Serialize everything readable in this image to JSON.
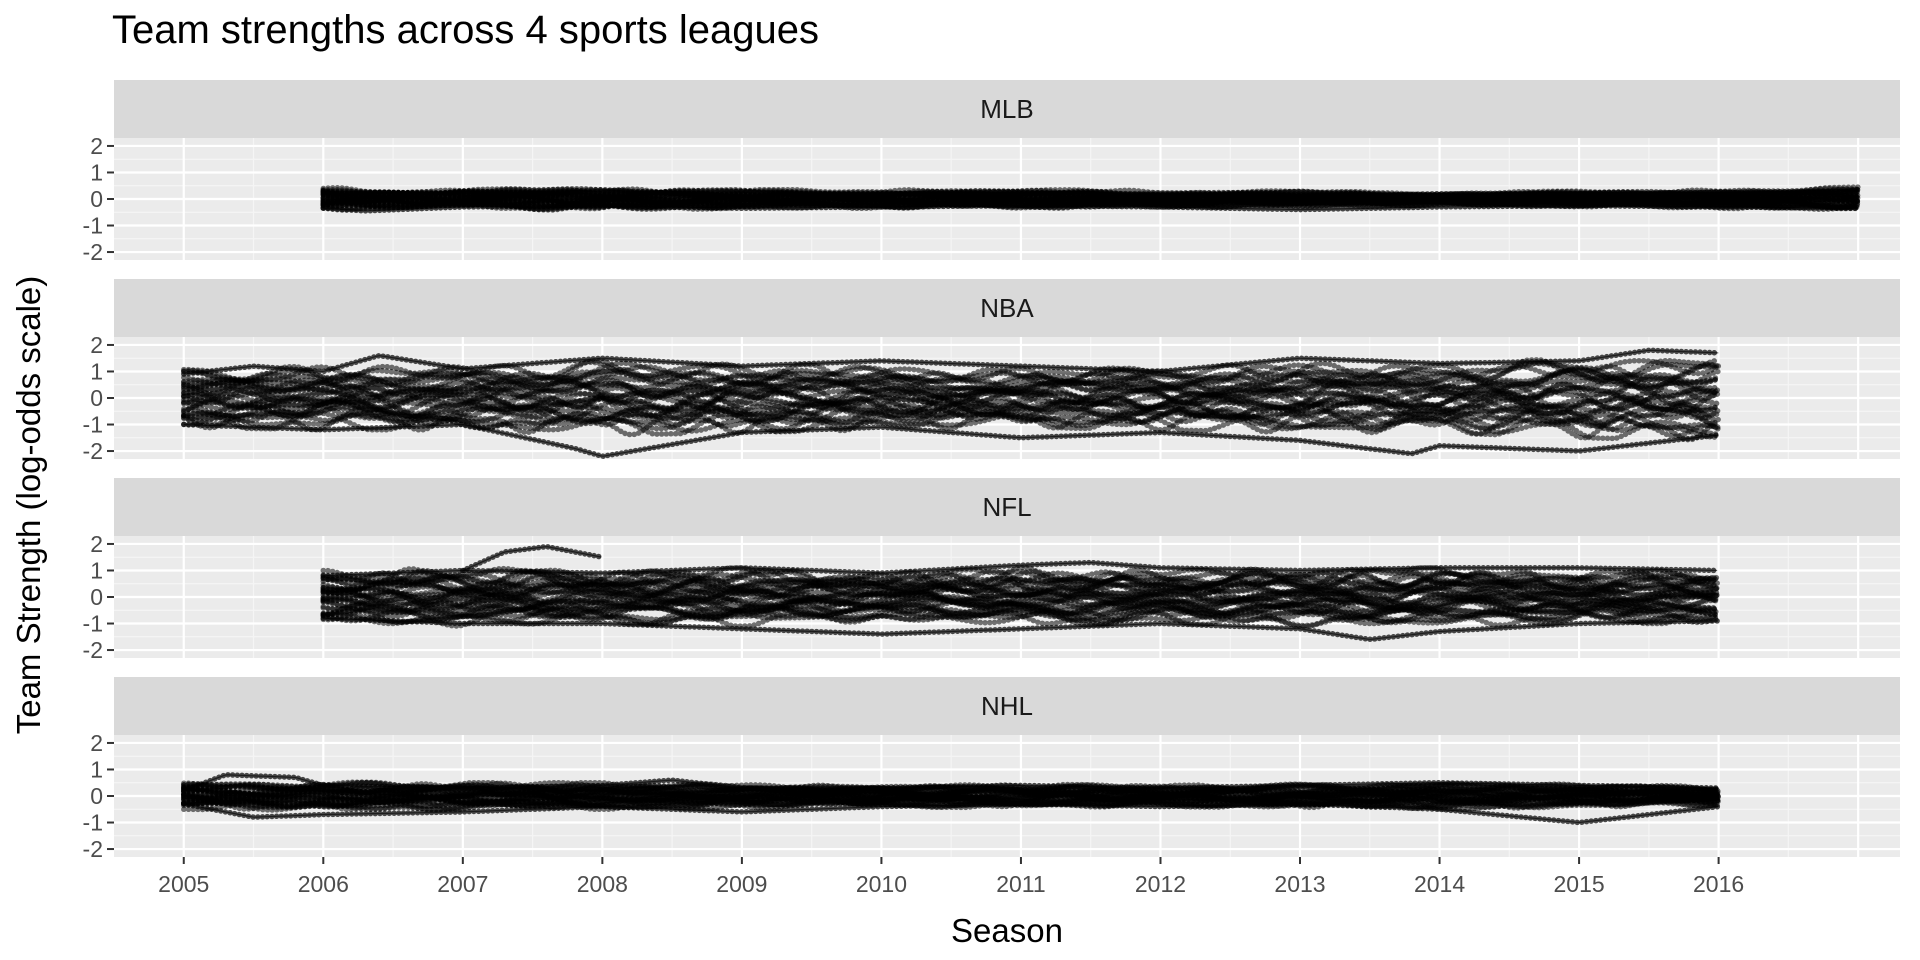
{
  "chart_data": {
    "type": "line",
    "title": "Team strengths across 4 sports leagues",
    "xlabel": "Season",
    "ylabel": "Team Strength (log-odds scale)",
    "xlim": [
      2004.5,
      2017.3
    ],
    "x_ticks": [
      2005,
      2006,
      2007,
      2008,
      2009,
      2010,
      2011,
      2012,
      2013,
      2014,
      2015,
      2016
    ],
    "x_tick_labels": [
      "2005",
      "2006",
      "2007",
      "2008",
      "2009",
      "2010",
      "2011",
      "2012",
      "2013",
      "2014",
      "2015",
      "2016"
    ],
    "ylim": [
      -2.3,
      2.3
    ],
    "y_ticks": [
      -2,
      -1,
      0,
      1,
      2
    ],
    "y_tick_labels": [
      "-2",
      "-1",
      "0",
      "1",
      "2"
    ],
    "grid": true,
    "colors": {
      "panel_bg": "#EBEBEB",
      "strip_bg": "#D9D9D9",
      "grid_major": "#FFFFFF",
      "grid_minor": "#F5F5F5",
      "points": "#000000"
    },
    "facets": [
      {
        "label": "MLB",
        "start": 2006.0,
        "end": 2017.0,
        "n_series": 30,
        "envelope": [
          [
            2006.0,
            0.45
          ],
          [
            2006.5,
            0.35
          ],
          [
            2007.0,
            0.35
          ],
          [
            2008.0,
            0.45
          ],
          [
            2009.0,
            0.35
          ],
          [
            2011.0,
            0.35
          ],
          [
            2013.0,
            0.3
          ],
          [
            2014.0,
            0.25
          ],
          [
            2015.0,
            0.3
          ],
          [
            2016.0,
            0.35
          ],
          [
            2017.0,
            0.45
          ]
        ],
        "series": [
          {
            "values": [
              [
                2006.0,
                0.3
              ],
              [
                2007.0,
                0.2
              ],
              [
                2008.0,
                0.35
              ],
              [
                2009.0,
                0.1
              ],
              [
                2010.0,
                0.2
              ],
              [
                2011.0,
                0.25
              ],
              [
                2012.0,
                0.15
              ],
              [
                2013.0,
                0.1
              ],
              [
                2014.0,
                0.2
              ],
              [
                2015.0,
                0.2
              ],
              [
                2016.0,
                0.25
              ],
              [
                2017.0,
                0.3
              ]
            ]
          },
          {
            "values": [
              [
                2006.0,
                -0.35
              ],
              [
                2006.3,
                -0.45
              ],
              [
                2007.0,
                -0.3
              ],
              [
                2008.0,
                -0.25
              ],
              [
                2009.0,
                -0.35
              ],
              [
                2010.0,
                -0.3
              ],
              [
                2011.0,
                -0.25
              ],
              [
                2012.0,
                -0.3
              ],
              [
                2013.0,
                -0.4
              ],
              [
                2014.0,
                -0.3
              ],
              [
                2015.0,
                -0.25
              ],
              [
                2016.0,
                -0.3
              ],
              [
                2017.0,
                -0.35
              ]
            ]
          }
        ]
      },
      {
        "label": "NBA",
        "start": 2005.0,
        "end": 2016.0,
        "n_series": 30,
        "envelope": [
          [
            2005.0,
            1.1
          ],
          [
            2006.0,
            1.2
          ],
          [
            2007.0,
            1.2
          ],
          [
            2008.0,
            1.4
          ],
          [
            2009.0,
            1.3
          ],
          [
            2010.0,
            1.2
          ],
          [
            2011.0,
            1.1
          ],
          [
            2012.0,
            1.2
          ],
          [
            2013.0,
            1.3
          ],
          [
            2014.0,
            1.3
          ],
          [
            2015.0,
            1.5
          ],
          [
            2016.0,
            1.6
          ]
        ],
        "series": [
          {
            "values": [
              [
                2005.0,
                0.9
              ],
              [
                2005.5,
                1.2
              ],
              [
                2006.0,
                1.0
              ],
              [
                2006.4,
                1.6
              ],
              [
                2007.0,
                1.1
              ],
              [
                2008.0,
                1.5
              ],
              [
                2009.0,
                1.2
              ],
              [
                2010.0,
                1.4
              ],
              [
                2011.0,
                1.2
              ],
              [
                2012.0,
                1.0
              ],
              [
                2013.0,
                1.5
              ],
              [
                2014.0,
                1.3
              ],
              [
                2015.0,
                1.4
              ],
              [
                2015.5,
                1.8
              ],
              [
                2016.0,
                1.7
              ]
            ]
          },
          {
            "values": [
              [
                2005.0,
                -1.0
              ],
              [
                2006.0,
                -1.2
              ],
              [
                2007.0,
                -1.0
              ],
              [
                2007.8,
                -1.9
              ],
              [
                2008.0,
                -2.2
              ],
              [
                2009.0,
                -1.3
              ],
              [
                2010.0,
                -1.1
              ],
              [
                2011.0,
                -1.5
              ],
              [
                2012.0,
                -1.3
              ],
              [
                2013.0,
                -1.6
              ],
              [
                2013.8,
                -2.1
              ],
              [
                2014.0,
                -1.8
              ],
              [
                2015.0,
                -2.0
              ],
              [
                2016.0,
                -1.4
              ]
            ]
          }
        ]
      },
      {
        "label": "NFL",
        "start": 2006.0,
        "end": 2016.0,
        "n_series": 32,
        "envelope": [
          [
            2006.0,
            1.0
          ],
          [
            2007.0,
            1.1
          ],
          [
            2008.0,
            1.0
          ],
          [
            2009.0,
            1.1
          ],
          [
            2010.0,
            0.9
          ],
          [
            2011.0,
            1.1
          ],
          [
            2012.0,
            1.0
          ],
          [
            2013.0,
            1.1
          ],
          [
            2014.0,
            1.1
          ],
          [
            2015.0,
            1.0
          ],
          [
            2016.0,
            1.0
          ]
        ],
        "series": [
          {
            "values": [
              [
                2007.0,
                1.0
              ],
              [
                2007.3,
                1.7
              ],
              [
                2007.6,
                1.9
              ],
              [
                2008.0,
                1.5
              ]
            ]
          },
          {
            "values": [
              [
                2006.0,
                0.8
              ],
              [
                2007.0,
                1.0
              ],
              [
                2008.0,
                0.9
              ],
              [
                2009.0,
                1.1
              ],
              [
                2010.0,
                0.9
              ],
              [
                2011.0,
                1.2
              ],
              [
                2011.5,
                1.3
              ],
              [
                2012.0,
                1.1
              ],
              [
                2013.0,
                1.0
              ],
              [
                2014.0,
                1.1
              ],
              [
                2015.0,
                1.1
              ],
              [
                2016.0,
                1.0
              ]
            ]
          },
          {
            "values": [
              [
                2006.0,
                -0.8
              ],
              [
                2007.0,
                -1.0
              ],
              [
                2008.0,
                -1.0
              ],
              [
                2009.0,
                -1.2
              ],
              [
                2010.0,
                -1.4
              ],
              [
                2011.0,
                -1.2
              ],
              [
                2012.0,
                -1.0
              ],
              [
                2013.0,
                -1.2
              ],
              [
                2013.5,
                -1.6
              ],
              [
                2014.0,
                -1.3
              ],
              [
                2015.0,
                -1.0
              ],
              [
                2016.0,
                -0.9
              ]
            ]
          }
        ]
      },
      {
        "label": "NHL",
        "start": 2005.0,
        "end": 2016.0,
        "n_series": 30,
        "envelope": [
          [
            2005.0,
            0.5
          ],
          [
            2006.0,
            0.55
          ],
          [
            2007.0,
            0.5
          ],
          [
            2008.0,
            0.5
          ],
          [
            2009.0,
            0.45
          ],
          [
            2010.0,
            0.4
          ],
          [
            2011.0,
            0.45
          ],
          [
            2012.0,
            0.4
          ],
          [
            2013.0,
            0.45
          ],
          [
            2014.0,
            0.5
          ],
          [
            2015.0,
            0.45
          ],
          [
            2016.0,
            0.35
          ]
        ],
        "series": [
          {
            "values": [
              [
                2005.0,
                0.2
              ],
              [
                2005.3,
                0.8
              ],
              [
                2005.8,
                0.7
              ],
              [
                2006.0,
                0.4
              ],
              [
                2007.0,
                0.3
              ],
              [
                2008.0,
                0.4
              ],
              [
                2008.5,
                0.6
              ],
              [
                2009.0,
                0.3
              ],
              [
                2010.0,
                0.3
              ],
              [
                2011.0,
                0.4
              ],
              [
                2012.0,
                0.3
              ],
              [
                2013.0,
                0.4
              ],
              [
                2014.0,
                0.5
              ],
              [
                2015.0,
                0.4
              ],
              [
                2016.0,
                0.3
              ]
            ]
          },
          {
            "values": [
              [
                2005.0,
                -0.3
              ],
              [
                2005.5,
                -0.8
              ],
              [
                2006.0,
                -0.7
              ],
              [
                2007.0,
                -0.6
              ],
              [
                2008.0,
                -0.4
              ],
              [
                2009.0,
                -0.6
              ],
              [
                2010.0,
                -0.4
              ],
              [
                2011.0,
                -0.3
              ],
              [
                2012.0,
                -0.4
              ],
              [
                2013.0,
                -0.3
              ],
              [
                2014.0,
                -0.5
              ],
              [
                2014.8,
                -0.9
              ],
              [
                2015.0,
                -1.0
              ],
              [
                2016.0,
                -0.4
              ]
            ]
          }
        ]
      }
    ]
  }
}
